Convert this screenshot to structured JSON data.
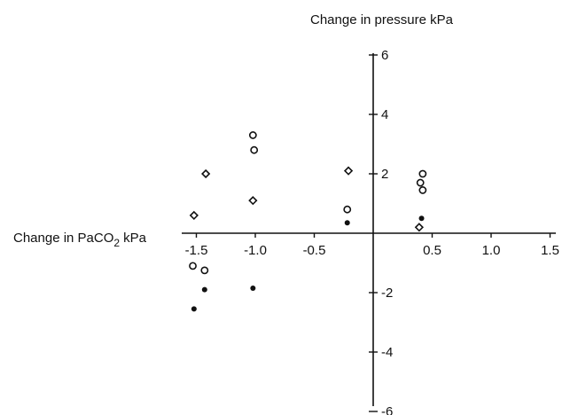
{
  "chart_data": {
    "type": "scatter",
    "title": "Change in pressure kPa",
    "xlabel": "Change in PaCO",
    "xlabel_subscript": "2",
    "xlabel_unit": "kPa",
    "ylabel": "Change in pressure kPa",
    "xlim": [
      -1.6,
      1.55
    ],
    "ylim": [
      -6.2,
      6.5
    ],
    "x_ticks": [
      -1.5,
      -1.0,
      -0.5,
      0.5,
      1.0,
      1.5
    ],
    "x_tick_labels": [
      "-1.5",
      "-1.0",
      "-0.5",
      "0.5",
      "1.0",
      "1.5"
    ],
    "y_ticks": [
      6,
      4,
      2,
      -2,
      -4,
      -6
    ],
    "y_tick_labels": [
      "6",
      "4",
      "2",
      "-2",
      "-4",
      "-6"
    ],
    "grid": false,
    "legend": "none",
    "series": [
      {
        "marker": "diamond-open",
        "points": [
          {
            "x": -1.52,
            "y": 0.6
          },
          {
            "x": -1.42,
            "y": 2.0
          },
          {
            "x": -1.02,
            "y": 1.1
          },
          {
            "x": -0.21,
            "y": 2.1
          },
          {
            "x": 0.39,
            "y": 0.2
          }
        ]
      },
      {
        "marker": "circle-open",
        "points": [
          {
            "x": -1.02,
            "y": 3.3
          },
          {
            "x": -1.01,
            "y": 2.8
          },
          {
            "x": -0.22,
            "y": 0.8
          },
          {
            "x": 0.42,
            "y": 2.0
          },
          {
            "x": 0.4,
            "y": 1.7
          },
          {
            "x": 0.42,
            "y": 1.45
          },
          {
            "x": -1.53,
            "y": -1.1
          },
          {
            "x": -1.43,
            "y": -1.25
          }
        ]
      },
      {
        "marker": "filled",
        "points": [
          {
            "x": -0.22,
            "y": 0.35
          },
          {
            "x": 0.41,
            "y": 0.5
          },
          {
            "x": -1.43,
            "y": -1.9
          },
          {
            "x": -1.02,
            "y": -1.85
          },
          {
            "x": -1.52,
            "y": -2.55
          }
        ]
      }
    ],
    "colors": {
      "ink": "#111111",
      "background": "#ffffff"
    }
  }
}
